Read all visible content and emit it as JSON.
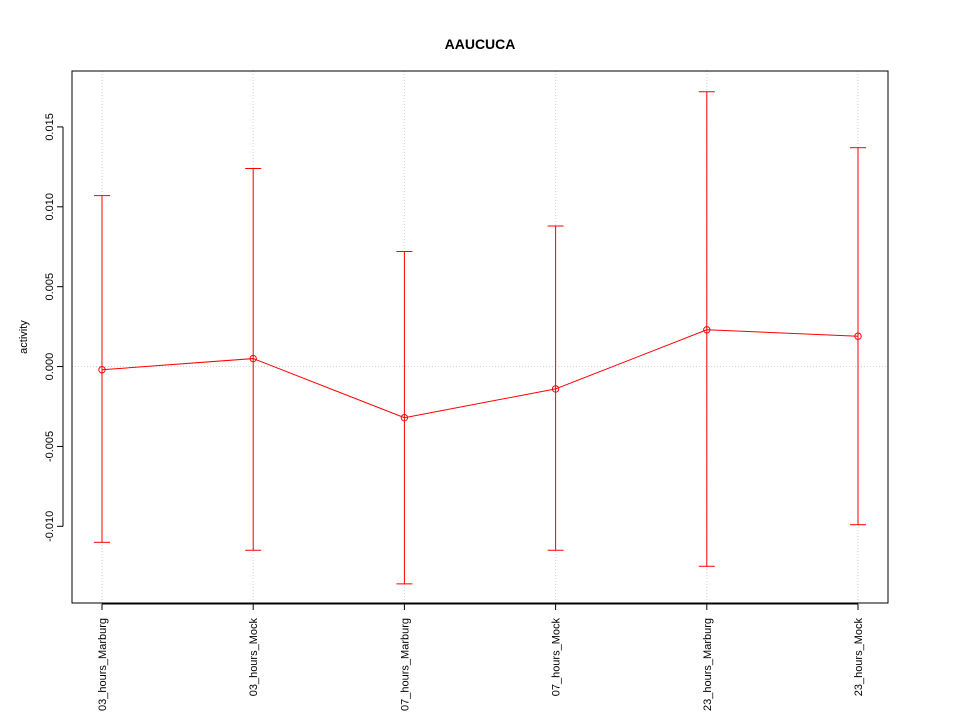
{
  "chart_data": {
    "type": "line",
    "title": "AAUCUCA",
    "xlabel": "",
    "ylabel": "activity",
    "categories": [
      "03_hours_Marburg",
      "03_hours_Mock",
      "07_hours_Marburg",
      "07_hours_Mock",
      "23_hours_Marburg",
      "23_hours_Mock"
    ],
    "series": [
      {
        "values": [
          -0.0002,
          0.0005,
          -0.0032,
          -0.0014,
          0.0023,
          0.0019
        ],
        "lower": [
          -0.011,
          -0.0115,
          -0.0136,
          -0.0115,
          -0.0125,
          -0.0099
        ],
        "upper": [
          0.0107,
          0.0124,
          0.0072,
          0.0088,
          0.0172,
          0.0137
        ],
        "color": "#ff0000"
      }
    ],
    "yticks": [
      -0.01,
      -0.005,
      0.0,
      0.005,
      0.01,
      0.015
    ],
    "ytick_labels": [
      "-0.010",
      "-0.005",
      "0.000",
      "0.005",
      "0.010",
      "0.015"
    ],
    "ylim": [
      -0.0148,
      0.0185
    ],
    "grid": true,
    "grid_color": "#d3d3d3",
    "reference_line": 0.0
  }
}
